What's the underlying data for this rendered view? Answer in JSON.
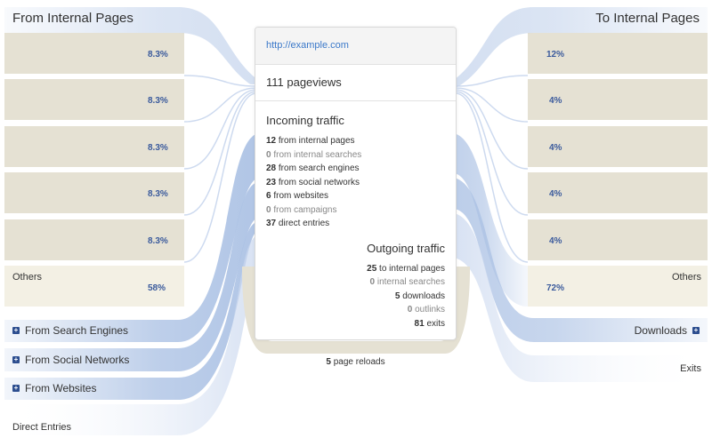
{
  "left_header": "From Internal Pages",
  "right_header": "To Internal Pages",
  "left_boxes": [
    {
      "pct": "8.3%"
    },
    {
      "pct": "8.3%"
    },
    {
      "pct": "8.3%"
    },
    {
      "pct": "8.3%"
    },
    {
      "pct": "8.3%"
    }
  ],
  "left_others": {
    "label": "Others",
    "pct": "58%"
  },
  "right_boxes": [
    {
      "pct": "12%"
    },
    {
      "pct": "4%"
    },
    {
      "pct": "4%"
    },
    {
      "pct": "4%"
    },
    {
      "pct": "4%"
    }
  ],
  "right_others": {
    "label": "Others",
    "pct": "72%"
  },
  "left_groups": [
    "From Search Engines",
    "From Social Networks",
    "From Websites"
  ],
  "direct_entries": "Direct Entries",
  "right_groups": {
    "downloads": "Downloads",
    "exits": "Exits"
  },
  "card": {
    "url": "http://example.com",
    "pageviews": "111 pageviews",
    "incoming_title": "Incoming traffic",
    "incoming": [
      {
        "n": "12",
        "t": "from internal pages"
      },
      {
        "n": "0",
        "t": "from internal searches"
      },
      {
        "n": "28",
        "t": "from search engines"
      },
      {
        "n": "23",
        "t": "from social networks"
      },
      {
        "n": "6",
        "t": "from websites"
      },
      {
        "n": "0",
        "t": "from campaigns"
      },
      {
        "n": "37",
        "t": "direct entries"
      }
    ],
    "outgoing_title": "Outgoing traffic",
    "outgoing": [
      {
        "n": "25",
        "t": "to internal pages"
      },
      {
        "n": "0",
        "t": "internal searches"
      },
      {
        "n": "5",
        "t": "downloads"
      },
      {
        "n": "0",
        "t": "outlinks"
      },
      {
        "n": "81",
        "t": "exits"
      }
    ]
  },
  "reloads": {
    "n": "5",
    "t": "page reloads"
  },
  "colors": {
    "beige": "#e5e1d3",
    "light_beige": "#f3f0e4",
    "blue_light": "#d9e3f3",
    "blue_mid": "#a8bfe3",
    "blue_dark": "#2d4e8f",
    "link": "#3a78c9"
  }
}
